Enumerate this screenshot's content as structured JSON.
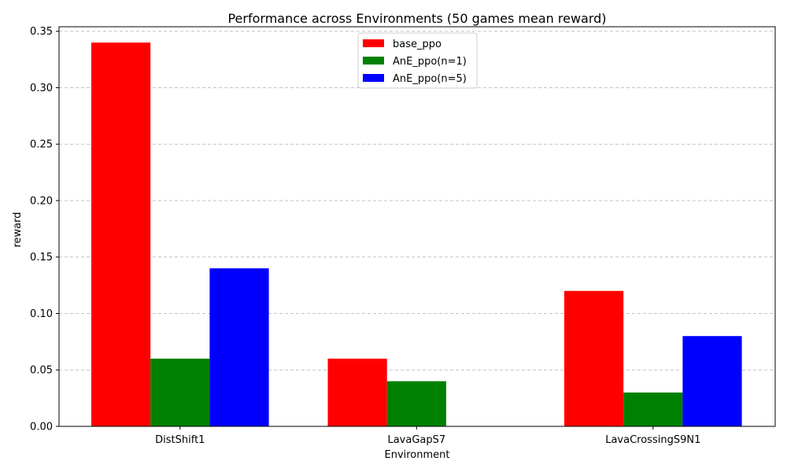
{
  "chart_data": {
    "type": "bar",
    "title": "Performance across Environments (50 games mean reward)",
    "xlabel": "Environment",
    "ylabel": "reward",
    "categories": [
      "DistShift1",
      "LavaGapS7",
      "LavaCrossingS9N1"
    ],
    "series": [
      {
        "name": "base_ppo",
        "color": "#ff0000",
        "values": [
          0.34,
          0.06,
          0.12
        ]
      },
      {
        "name": "AnE_ppo(n=1)",
        "color": "#008000",
        "values": [
          0.06,
          0.04,
          0.03
        ]
      },
      {
        "name": "AnE_ppo(n=5)",
        "color": "#0000ff",
        "values": [
          0.14,
          0.0,
          0.08
        ]
      }
    ],
    "ylim": [
      0,
      0.354
    ],
    "yticks": [
      "0.00",
      "0.05",
      "0.10",
      "0.15",
      "0.20",
      "0.25",
      "0.30",
      "0.35"
    ],
    "grid": "y dashed",
    "legend_position": "top-center"
  }
}
